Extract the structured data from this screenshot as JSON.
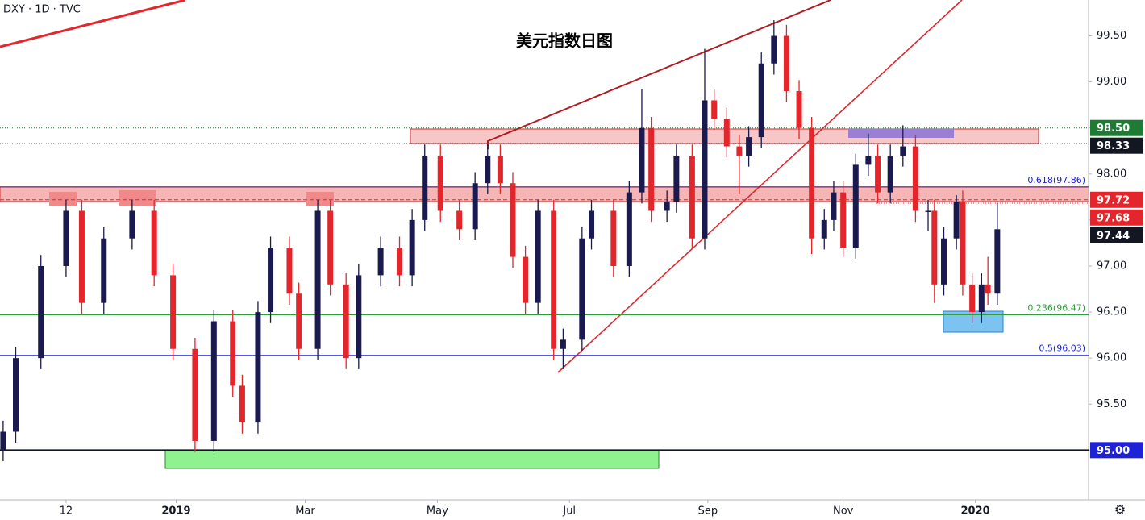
{
  "chart_data": {
    "type": "candlestick",
    "symbol": "DXY · 1D · TVC",
    "title": "美元指数日图",
    "up_color": "#1b1a4f",
    "down_color": "#e3262c",
    "xlim": [
      0,
      346
    ],
    "xticks": [
      {
        "value": 21,
        "label": "12"
      },
      {
        "value": 56,
        "label": "2019"
      },
      {
        "value": 97,
        "label": "Mar"
      },
      {
        "value": 139,
        "label": "May"
      },
      {
        "value": 181,
        "label": "Jul"
      },
      {
        "value": 225,
        "label": "Sep"
      },
      {
        "value": 268,
        "label": "Nov"
      },
      {
        "value": 310,
        "label": "2020"
      }
    ],
    "ylim": [
      94.46,
      99.89
    ],
    "yticks": [
      {
        "value": 95,
        "label": "95.00"
      },
      {
        "value": 95.5,
        "label": "95.50"
      },
      {
        "value": 96,
        "label": "96.00"
      },
      {
        "value": 96.5,
        "label": "96.50"
      },
      {
        "value": 97,
        "label": "97.00"
      },
      {
        "value": 97.5,
        "label": "97.50"
      },
      {
        "value": 98,
        "label": "98.00"
      },
      {
        "value": 98.5,
        "label": "98.50"
      },
      {
        "value": 99,
        "label": "99.00"
      },
      {
        "value": 99.5,
        "label": "99.50"
      }
    ],
    "x": [
      1,
      5,
      13,
      21,
      26,
      33,
      42,
      49,
      55,
      62,
      68,
      74,
      77,
      82,
      86,
      92,
      95,
      101,
      105,
      110,
      114,
      121,
      127,
      131,
      135,
      140,
      146,
      151,
      155,
      159,
      163,
      167,
      171,
      176,
      179,
      185,
      188,
      195,
      200,
      204,
      207,
      212,
      215,
      220,
      224,
      227,
      231,
      235,
      238,
      242,
      246,
      250,
      254,
      258,
      262,
      265,
      268,
      272,
      276,
      279,
      283,
      287,
      291,
      295,
      297,
      300,
      304,
      306,
      309,
      312,
      314,
      317
    ],
    "ohlc": [
      [
        95.0,
        95.32,
        94.88,
        95.2
      ],
      [
        95.2,
        96.12,
        95.08,
        96.0
      ],
      [
        96.0,
        97.12,
        95.88,
        97.0
      ],
      [
        97.0,
        97.72,
        96.88,
        97.6
      ],
      [
        97.6,
        97.72,
        96.48,
        96.6
      ],
      [
        96.6,
        97.42,
        96.48,
        97.3
      ],
      [
        97.3,
        97.72,
        97.18,
        97.6
      ],
      [
        97.6,
        97.72,
        96.78,
        96.9
      ],
      [
        96.9,
        97.02,
        95.98,
        96.1
      ],
      [
        96.1,
        96.22,
        94.98,
        95.1
      ],
      [
        95.1,
        96.52,
        94.98,
        96.4
      ],
      [
        96.4,
        96.52,
        95.58,
        95.7
      ],
      [
        95.7,
        95.82,
        95.18,
        95.3
      ],
      [
        95.3,
        96.62,
        95.18,
        96.5
      ],
      [
        96.5,
        97.32,
        96.38,
        97.2
      ],
      [
        97.2,
        97.32,
        96.58,
        96.7
      ],
      [
        96.7,
        96.82,
        95.98,
        96.1
      ],
      [
        96.1,
        97.72,
        95.98,
        97.6
      ],
      [
        97.6,
        97.72,
        96.68,
        96.8
      ],
      [
        96.8,
        96.92,
        95.88,
        96.0
      ],
      [
        96.0,
        97.02,
        95.88,
        96.9
      ],
      [
        96.9,
        97.32,
        96.78,
        97.2
      ],
      [
        97.2,
        97.32,
        96.78,
        96.9
      ],
      [
        96.9,
        97.62,
        96.78,
        97.5
      ],
      [
        97.5,
        98.32,
        97.38,
        98.2
      ],
      [
        98.2,
        98.32,
        97.48,
        97.6
      ],
      [
        97.6,
        97.72,
        97.28,
        97.4
      ],
      [
        97.4,
        98.02,
        97.28,
        97.9
      ],
      [
        97.9,
        98.32,
        97.78,
        98.2
      ],
      [
        98.2,
        98.32,
        97.78,
        97.9
      ],
      [
        97.9,
        98.02,
        96.98,
        97.1
      ],
      [
        97.1,
        97.22,
        96.48,
        96.6
      ],
      [
        96.6,
        97.72,
        96.48,
        97.6
      ],
      [
        97.6,
        97.72,
        95.98,
        96.1
      ],
      [
        96.1,
        96.32,
        95.88,
        96.2
      ],
      [
        96.2,
        97.42,
        96.08,
        97.3
      ],
      [
        97.3,
        97.72,
        97.18,
        97.6
      ],
      [
        97.6,
        97.72,
        96.88,
        97.0
      ],
      [
        97.0,
        97.92,
        96.88,
        97.8
      ],
      [
        97.8,
        98.92,
        97.68,
        98.5
      ],
      [
        98.5,
        98.62,
        97.48,
        97.6
      ],
      [
        97.6,
        97.82,
        97.48,
        97.7
      ],
      [
        97.7,
        98.32,
        97.58,
        98.2
      ],
      [
        98.2,
        98.32,
        97.18,
        97.3
      ],
      [
        97.3,
        99.36,
        97.18,
        98.8
      ],
      [
        98.8,
        98.92,
        98.48,
        98.6
      ],
      [
        98.6,
        98.72,
        98.18,
        98.3
      ],
      [
        98.3,
        98.42,
        97.78,
        98.2
      ],
      [
        98.2,
        98.52,
        98.08,
        98.4
      ],
      [
        98.4,
        99.32,
        98.28,
        99.2
      ],
      [
        99.2,
        99.67,
        99.08,
        99.5
      ],
      [
        99.5,
        99.62,
        98.78,
        98.9
      ],
      [
        98.9,
        99.02,
        98.38,
        98.5
      ],
      [
        98.5,
        98.62,
        97.13,
        97.3
      ],
      [
        97.3,
        97.62,
        97.18,
        97.5
      ],
      [
        97.5,
        97.92,
        97.38,
        97.8
      ],
      [
        97.8,
        97.92,
        97.1,
        97.2
      ],
      [
        97.2,
        98.22,
        97.08,
        98.1
      ],
      [
        98.1,
        98.44,
        97.98,
        98.2
      ],
      [
        98.2,
        98.32,
        97.68,
        97.8
      ],
      [
        97.8,
        98.32,
        97.68,
        98.2
      ],
      [
        98.2,
        98.53,
        98.08,
        98.3
      ],
      [
        98.3,
        98.42,
        97.48,
        97.6
      ],
      [
        97.6,
        97.72,
        97.38,
        97.6
      ],
      [
        97.6,
        97.72,
        96.6,
        96.8
      ],
      [
        96.8,
        97.42,
        96.68,
        97.3
      ],
      [
        97.3,
        97.77,
        97.18,
        97.7
      ],
      [
        97.7,
        97.82,
        96.68,
        96.8
      ],
      [
        96.8,
        96.92,
        96.38,
        96.5
      ],
      [
        96.5,
        96.92,
        96.38,
        96.8
      ],
      [
        96.8,
        97.1,
        96.58,
        96.7
      ],
      [
        96.7,
        97.68,
        96.58,
        97.4
      ]
    ],
    "levels": [
      {
        "value": 98.5,
        "label": "98.50",
        "color": "#1e7b34",
        "line": "dotted"
      },
      {
        "value": 98.33,
        "label": "98.33",
        "color": "#131722",
        "line": "dotted"
      },
      {
        "value": 97.72,
        "label": "97.72",
        "color": "#e3262c",
        "line": "dashed"
      },
      {
        "value": 97.68,
        "label": "97.68",
        "color": "#e3262c",
        "line": "none"
      },
      {
        "value": 97.44,
        "label": "97.44",
        "color": "#131722",
        "line": "none"
      },
      {
        "value": 95,
        "label": "95.00",
        "color": "#1e22d6",
        "line": "solid"
      }
    ],
    "fib": [
      {
        "value": 97.86,
        "label": "0.618(97.86)",
        "color": "#1e22d6"
      },
      {
        "value": 96.47,
        "label": "0.236(96.47)",
        "color": "#2e9e3a"
      },
      {
        "value": 96.03,
        "label": "0.5(96.03)",
        "color": "#1e22d6"
      }
    ]
  }
}
